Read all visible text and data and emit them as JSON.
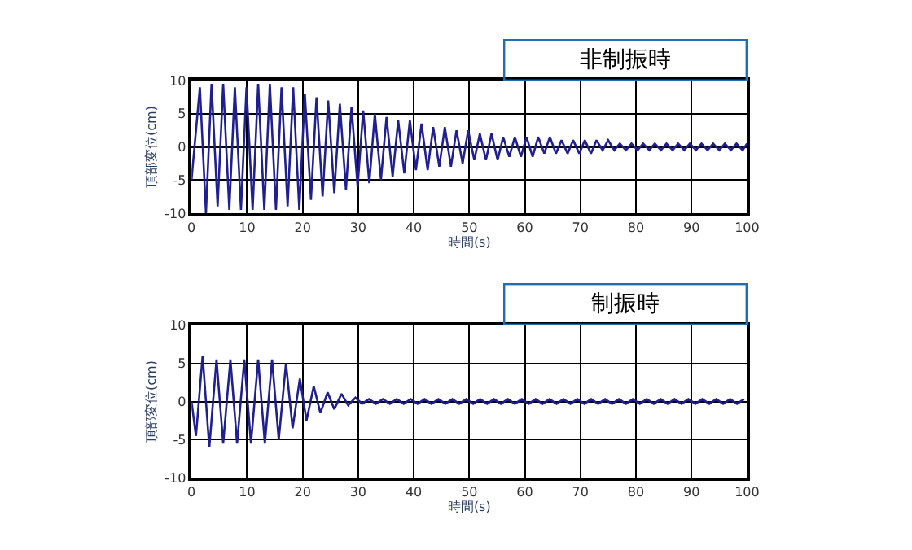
{
  "chart_data": [
    {
      "type": "line",
      "xlabel": "時間(s)",
      "ylabel": "頂部変位(cm)",
      "annotations": [
        "非制振時"
      ],
      "xlim": [
        0,
        100
      ],
      "ylim": [
        -10,
        10
      ],
      "xticks": [
        0,
        10,
        20,
        30,
        40,
        50,
        60,
        70,
        80,
        90,
        100
      ],
      "yticks": [
        -10,
        -5,
        0,
        5,
        10
      ],
      "grid": true,
      "marker": "none",
      "line_style": "solid",
      "series": [
        {
          "color": "#1f1f8f",
          "x": [
            0,
            1.5,
            2.6,
            3.6,
            4.7,
            5.7,
            6.8,
            7.8,
            8.9,
            9.9,
            11,
            12,
            13.1,
            14.1,
            15.2,
            16.2,
            17.3,
            18.3,
            19.4,
            20.4,
            21.5,
            22.5,
            23.6,
            24.6,
            25.7,
            26.7,
            27.8,
            28.8,
            29.9,
            30.9,
            32,
            33,
            34.1,
            35.1,
            36.2,
            37.2,
            38.3,
            39.3,
            40.4,
            41.4,
            42.5,
            43.5,
            44.6,
            45.6,
            46.7,
            47.7,
            48.8,
            49.8,
            50.9,
            51.9,
            53,
            54,
            55.1,
            56.1,
            57.2,
            58.2,
            59.3,
            60.3,
            61.4,
            62.4,
            63.5,
            64.5,
            65.6,
            66.6,
            67.7,
            68.7,
            69.8,
            70.8,
            71.9,
            72.9,
            74,
            75,
            76.1,
            77.1,
            78.2,
            79.2,
            80.3,
            81.3,
            82.4,
            83.4,
            84.5,
            85.5,
            86.6,
            87.6,
            88.7,
            89.7,
            90.8,
            91.8,
            92.9,
            93.9,
            95,
            96,
            97.1,
            98.1,
            99.2,
            100
          ],
          "values": [
            -5,
            9,
            -10,
            9.5,
            -9,
            9.5,
            -9.5,
            9,
            -9.5,
            9,
            -9.5,
            9.5,
            -9.5,
            9.5,
            -9.5,
            9,
            -9,
            9,
            -9.5,
            8,
            -8,
            7.5,
            -7.5,
            7,
            -7,
            6.5,
            -6.5,
            6,
            -6,
            5.5,
            -5.5,
            5,
            -5,
            4.5,
            -4.5,
            4,
            -4,
            4,
            -3.5,
            3.5,
            -3.5,
            3,
            -3,
            3,
            -3,
            2.5,
            -2.5,
            2.5,
            -2,
            2,
            -2,
            2,
            -2,
            1.5,
            -1.5,
            1.5,
            -1.5,
            1.5,
            -1.5,
            1.5,
            -1,
            1.5,
            -1,
            1,
            -1,
            1,
            -1,
            1,
            -1,
            1,
            -0.5,
            1,
            -0.5,
            0.5,
            -0.5,
            0.5,
            -0.5,
            0.5,
            -0.5,
            0.5,
            -0.5,
            0.5,
            -0.5,
            0.5,
            -0.5,
            0.5,
            -0.5,
            0.5,
            -0.5,
            0.5,
            -0.5,
            0.5,
            -0.5,
            0.5,
            -0.5,
            0.5
          ]
        }
      ]
    },
    {
      "type": "line",
      "xlabel": "時間(s)",
      "ylabel": "頂部変位(cm)",
      "annotations": [
        "制振時"
      ],
      "xlim": [
        0,
        100
      ],
      "ylim": [
        -10,
        10
      ],
      "xticks": [
        0,
        10,
        20,
        30,
        40,
        50,
        60,
        70,
        80,
        90,
        100
      ],
      "yticks": [
        -10,
        -5,
        0,
        5,
        10
      ],
      "grid": true,
      "marker": "none",
      "line_style": "solid",
      "series": [
        {
          "color": "#1f1f8f",
          "x": [
            0,
            0.8,
            2,
            3.2,
            4.5,
            5.7,
            7,
            8.2,
            9.5,
            10.7,
            12,
            13.2,
            14.5,
            15.7,
            17,
            18.2,
            19.5,
            20.7,
            22,
            23.2,
            24.5,
            25.7,
            27,
            28.2,
            29.5,
            30.7,
            31.95,
            33.2,
            34.45,
            35.7,
            36.95,
            38.2,
            39.45,
            40.7,
            41.95,
            43.2,
            44.45,
            45.7,
            46.95,
            48.2,
            49.45,
            50.7,
            51.95,
            53.2,
            54.45,
            55.7,
            56.95,
            58.2,
            59.45,
            60.7,
            61.95,
            63.2,
            64.45,
            65.7,
            66.95,
            68.2,
            69.45,
            70.7,
            71.95,
            73.2,
            74.45,
            75.7,
            76.95,
            78.2,
            79.45,
            80.7,
            81.95,
            83.2,
            84.45,
            85.7,
            86.95,
            88.2,
            89.45,
            90.7,
            91.95,
            93.2,
            94.45,
            95.7,
            96.95,
            98.2,
            99.45
          ],
          "values": [
            0,
            -4.5,
            6,
            -6,
            5.5,
            -5.5,
            5.5,
            -5.5,
            5.5,
            -5.5,
            5.5,
            -5.5,
            5.5,
            -5,
            5,
            -3.5,
            3,
            -2.5,
            2,
            -1.5,
            1.2,
            -1,
            1,
            -0.5,
            0.5,
            -0.3,
            0.3,
            -0.3,
            0.3,
            -0.3,
            0.3,
            -0.3,
            0.3,
            -0.3,
            0.3,
            -0.3,
            0.3,
            -0.3,
            0.3,
            -0.3,
            0.3,
            -0.3,
            0.3,
            -0.3,
            0.3,
            -0.3,
            0.3,
            -0.3,
            0.3,
            -0.3,
            0.3,
            -0.3,
            0.3,
            -0.3,
            0.3,
            -0.3,
            0.3,
            -0.3,
            0.3,
            -0.3,
            0.3,
            -0.3,
            0.3,
            -0.3,
            0.3,
            -0.3,
            0.3,
            -0.3,
            0.3,
            -0.3,
            0.3,
            -0.3,
            0.3,
            -0.3,
            0.3,
            -0.3,
            0.3,
            -0.3,
            0.3,
            -0.3,
            0.3
          ]
        }
      ]
    }
  ]
}
